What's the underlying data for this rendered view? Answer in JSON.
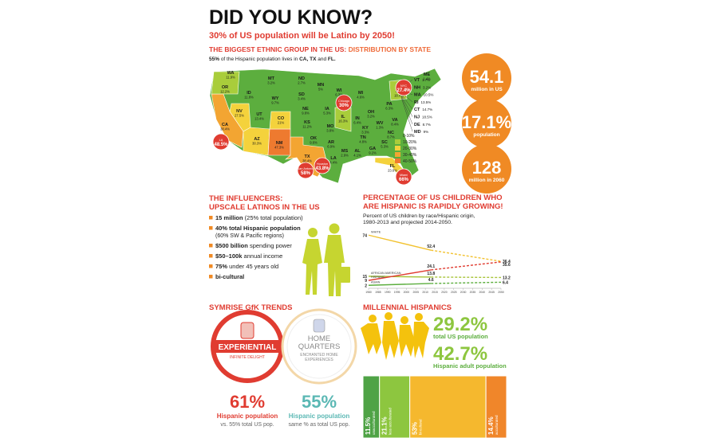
{
  "header": {
    "title": "DID YOU KNOW?",
    "subtitle": "30% of US population will be Latino by 2050!"
  },
  "distribution": {
    "heading": [
      {
        "text": "THE BIGGEST ETHNIC GROUP IN THE US: ",
        "color": "#e03c31"
      },
      {
        "text": "DISTRIBUTION BY STATE",
        "color": "#ef6b3a"
      }
    ],
    "note": [
      {
        "text": "55%",
        "bold": true
      },
      {
        "text": " of the Hispanic population lives in ",
        "bold": false
      },
      {
        "text": "CA, TX",
        "bold": true
      },
      {
        "text": " and ",
        "bold": false
      },
      {
        "text": "FL.",
        "bold": true
      }
    ],
    "states": [
      {
        "code": "WA",
        "pct": "11.9%"
      },
      {
        "code": "OR",
        "pct": "12.2%"
      },
      {
        "code": "ID",
        "pct": "11.8%"
      },
      {
        "code": "MT",
        "pct": "3.2%"
      },
      {
        "code": "WY",
        "pct": "9.7%"
      },
      {
        "code": "ND",
        "pct": "2.7%"
      },
      {
        "code": "SD",
        "pct": "3.4%"
      },
      {
        "code": "MN",
        "pct": "5%"
      },
      {
        "code": "WI",
        "pct": "6.3%"
      },
      {
        "code": "MI",
        "pct": "4.6%"
      },
      {
        "code": "NV",
        "pct": "27.5%"
      },
      {
        "code": "UT",
        "pct": "13.4%"
      },
      {
        "code": "CO",
        "pct": "21%"
      },
      {
        "code": "NE",
        "pct": "9.8%"
      },
      {
        "code": "IA",
        "pct": "5.3%"
      },
      {
        "code": "IL",
        "pct": "16.3%"
      },
      {
        "code": "IN",
        "pct": "6.4%"
      },
      {
        "code": "OH",
        "pct": "3.2%"
      },
      {
        "code": "PA",
        "pct": "6.3%"
      },
      {
        "code": "NY",
        "pct": "18.4%"
      },
      {
        "code": "CA",
        "pct": "38.4%"
      },
      {
        "code": "AZ",
        "pct": "30.3%"
      },
      {
        "code": "NM",
        "pct": "47.3%"
      },
      {
        "code": "KS",
        "pct": "11.2%"
      },
      {
        "code": "MO",
        "pct": "3.8%"
      },
      {
        "code": "KY",
        "pct": "3.3%"
      },
      {
        "code": "OK",
        "pct": "9.6%"
      },
      {
        "code": "AR",
        "pct": "6.9%"
      },
      {
        "code": "TN",
        "pct": "4.8%"
      },
      {
        "code": "NC",
        "pct": "8.7%"
      },
      {
        "code": "TX",
        "pct": "38.4%"
      },
      {
        "code": "LA",
        "pct": "4.4%"
      },
      {
        "code": "MS",
        "pct": "2.9%"
      },
      {
        "code": "AL",
        "pct": "4.1%"
      },
      {
        "code": "GA",
        "pct": "9.2%"
      },
      {
        "code": "SC",
        "pct": "5.3%"
      },
      {
        "code": "FL",
        "pct": "23.6%"
      },
      {
        "code": "ME",
        "pct": "1.4%"
      },
      {
        "code": "VA",
        "pct": "8.4%"
      },
      {
        "code": "WV",
        "pct": "1.3%"
      }
    ],
    "northeast": [
      {
        "code": "VT",
        "pct": "1.7%"
      },
      {
        "code": "NH",
        "pct": "3.2%"
      },
      {
        "code": "MA",
        "pct": "10.5%"
      },
      {
        "code": "RI",
        "pct": "13.5%"
      },
      {
        "code": "CT",
        "pct": "14.7%"
      },
      {
        "code": "NJ",
        "pct": "18.5%"
      },
      {
        "code": "DE",
        "pct": "8.7%"
      },
      {
        "code": "MD",
        "pct": "9%"
      }
    ],
    "cities": [
      {
        "name": "LA",
        "pct": "48.5%"
      },
      {
        "name": "Chicago",
        "pct": "30%"
      },
      {
        "name": "NYC",
        "pct": "27.4%"
      },
      {
        "name": "San Antonio",
        "pct": "58%"
      },
      {
        "name": "Houston",
        "pct": "43.8%"
      },
      {
        "name": "Miami",
        "pct": "66%"
      }
    ],
    "legend": [
      {
        "label": "0-10%",
        "color": "#5cae3e"
      },
      {
        "label": "10-20%",
        "color": "#a9cd3b"
      },
      {
        "label": "20-30%",
        "color": "#f4d23c"
      },
      {
        "label": "30-40%",
        "color": "#f3a532"
      },
      {
        "label": "40-50%",
        "color": "#ee7a2f"
      }
    ],
    "stats": [
      {
        "value": "54.1",
        "label": "million in US"
      },
      {
        "value": "17.1%",
        "label": "population"
      },
      {
        "value": "128",
        "label": "million in 2060"
      }
    ]
  },
  "influencers": {
    "heading": [
      "THE INFLUENCERS:",
      "UPSCALE LATINOS IN THE US"
    ],
    "items": [
      {
        "parts": [
          {
            "text": "15 million",
            "bold": true
          },
          {
            "text": " (25% total population)",
            "bold": false
          }
        ]
      },
      {
        "parts": [
          {
            "text": "40% total Hispanic population",
            "bold": true
          }
        ],
        "sub": "(60% SW & Pacific regions)"
      },
      {
        "parts": [
          {
            "text": "$500 billion",
            "bold": true
          },
          {
            "text": " spending power",
            "bold": false
          }
        ]
      },
      {
        "parts": [
          {
            "text": "$50–100k",
            "bold": true
          },
          {
            "text": " annual income",
            "bold": false
          }
        ]
      },
      {
        "parts": [
          {
            "text": "75%",
            "bold": true
          },
          {
            "text": " under 45 years old",
            "bold": false
          }
        ]
      },
      {
        "parts": [
          {
            "text": "bi-cultural",
            "bold": true
          }
        ]
      }
    ]
  },
  "chart_data": {
    "type": "line",
    "title": [
      "PERCENTAGE OF US CHILDREN WHO",
      "ARE HISPANIC IS RAPIDLY GROWING!"
    ],
    "subtitle": [
      "Percent of US children by race/Hispanic origin,",
      "1980-2013 and projected 2014-2050."
    ],
    "x": [
      1980,
      2013,
      2050
    ],
    "xlim": [
      1980,
      2050
    ],
    "xticks": [
      1980,
      1985,
      1990,
      1995,
      2000,
      2005,
      2010,
      2015,
      2020,
      2025,
      2030,
      2035,
      2040,
      2045,
      2050
    ],
    "ylim": [
      0,
      80
    ],
    "series": [
      {
        "name": "WHITE",
        "color": "#f2c230",
        "values": [
          74,
          52.4,
          36.4
        ]
      },
      {
        "name": "AFRICAN AMERICAN",
        "color": "#a8c43a",
        "values": [
          15,
          13.8,
          13.2
        ]
      },
      {
        "name": "HISPANIC",
        "color": "#e03c31",
        "values": [
          9,
          24.1,
          35.6
        ]
      },
      {
        "name": "ASIAN",
        "color": "#5cae3e",
        "values": [
          2,
          4.6,
          6.4
        ]
      }
    ]
  },
  "trends": {
    "heading": "SYMRISE GfK TRENDS",
    "cards": [
      {
        "badge": [
          "EXPERIENTIAL"
        ],
        "tagline": [
          "INFINITE DELIGHT"
        ],
        "pct": "61%",
        "label": "Hispanic population",
        "note": "vs. 55% total US pop.",
        "color": "#e03c31"
      },
      {
        "badge": [
          "HOME",
          "QUARTERS"
        ],
        "tagline": [
          "ENCHANTED HOME",
          "EXPERIENCES"
        ],
        "pct": "55%",
        "label": "Hispanic population",
        "note": "same % as total US pop.",
        "color": "#5bb8b4"
      }
    ]
  },
  "millennials": {
    "heading": "MILLENNIAL HISPANICS",
    "stats": [
      {
        "value": "29.2%",
        "label": "total US population"
      },
      {
        "value": "42.7%",
        "label": "Hispanic adult population"
      }
    ],
    "segments": [
      {
        "value": 11.5,
        "value_label": "11.5%",
        "label": "unacculturated",
        "color": "#4fa346"
      },
      {
        "value": 21.1,
        "value_label": "21.1%",
        "label": "less acculturated",
        "color": "#8dc63f"
      },
      {
        "value": 53,
        "value_label": "53%",
        "label": "bi-cultural",
        "color": "#f5b82e"
      },
      {
        "value": 14.4,
        "value_label": "14.4%",
        "label": "acculturated",
        "color": "#f0862a"
      }
    ]
  }
}
